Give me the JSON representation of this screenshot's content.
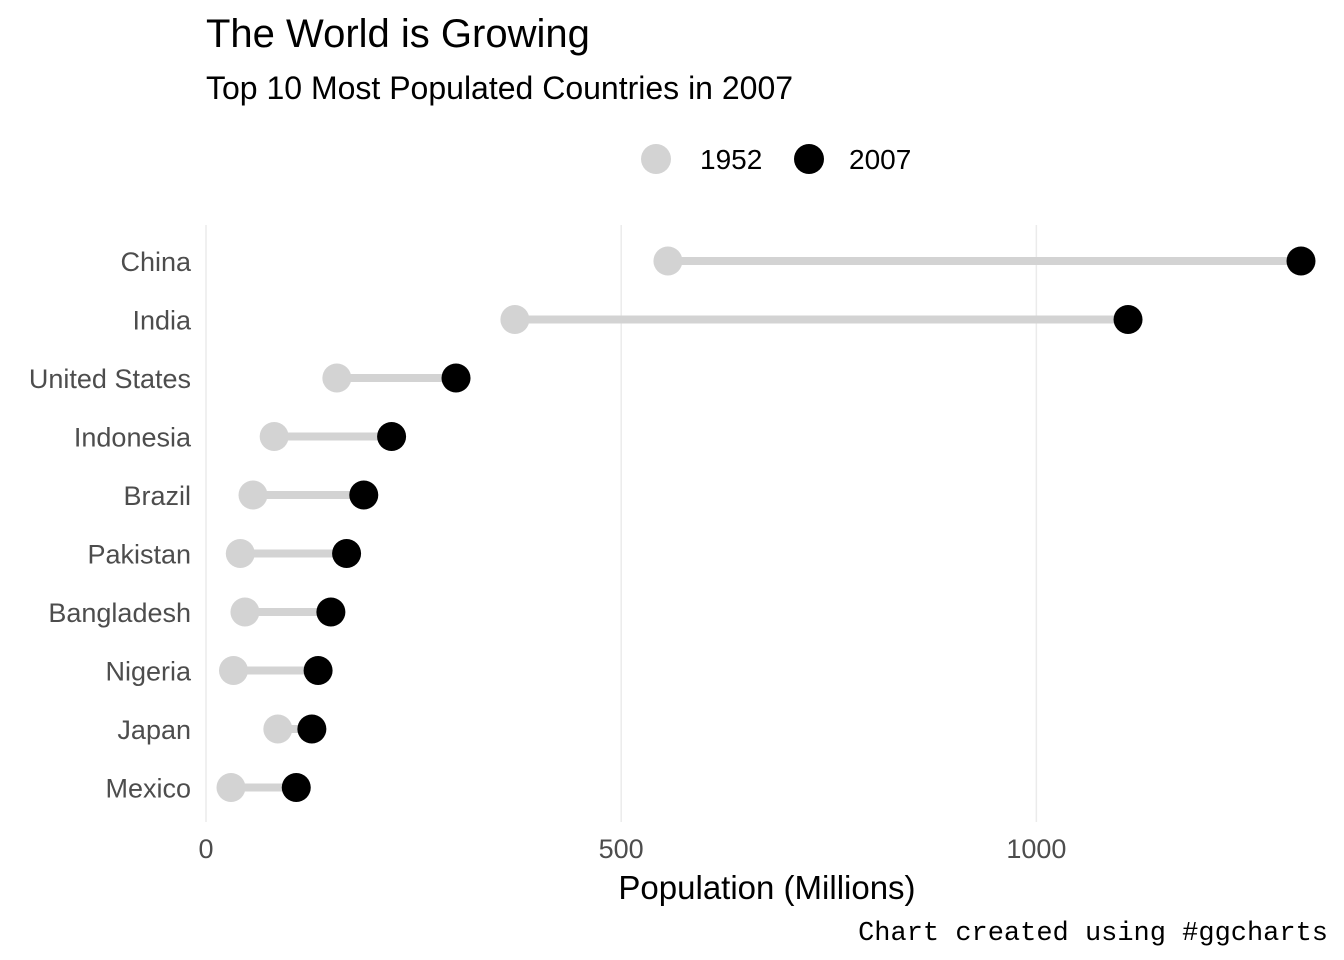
{
  "chart_data": {
    "type": "dumbbell",
    "title": "The World is Growing",
    "subtitle": "Top 10 Most Populated Countries in 2007",
    "caption": "Chart created using #ggcharts",
    "xlabel": "Population (Millions)",
    "ylabel": "",
    "xlim": [
      0,
      1318.7
    ],
    "xticks": [
      0,
      500,
      1000
    ],
    "grid": "vertical major",
    "legend_position": "top",
    "legend": [
      {
        "name": "1952",
        "color": "#d3d3d3"
      },
      {
        "name": "2007",
        "color": "#000000"
      }
    ],
    "categories": [
      "China",
      "India",
      "United States",
      "Indonesia",
      "Brazil",
      "Pakistan",
      "Bangladesh",
      "Nigeria",
      "Japan",
      "Mexico"
    ],
    "series": [
      {
        "name": "1952",
        "values": [
          556.3,
          372.0,
          157.6,
          82.1,
          56.6,
          41.3,
          46.9,
          33.1,
          86.5,
          30.1
        ]
      },
      {
        "name": "2007",
        "values": [
          1318.7,
          1110.4,
          301.1,
          223.5,
          190.0,
          169.3,
          150.4,
          135.0,
          127.5,
          108.7
        ]
      }
    ]
  }
}
